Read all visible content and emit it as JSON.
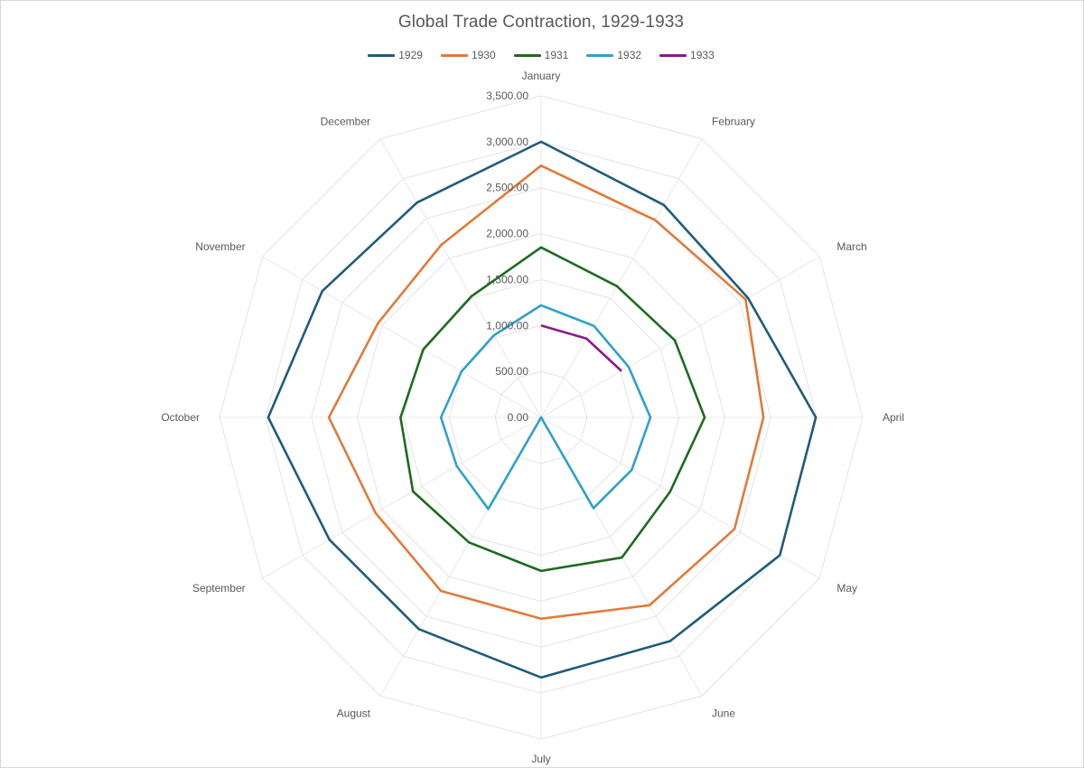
{
  "chart_data": {
    "type": "radar",
    "title": "Global Trade Contraction, 1929-1933",
    "categories": [
      "January",
      "February",
      "March",
      "April",
      "May",
      "June",
      "July",
      "August",
      "September",
      "October",
      "November",
      "December"
    ],
    "rlim": [
      0,
      3500
    ],
    "ticks": [
      0,
      500,
      1000,
      1500,
      2000,
      2500,
      3000,
      3500
    ],
    "tick_labels": [
      "0.00",
      "500.00",
      "1,000.00",
      "1,500.00",
      "2,000.00",
      "2,500.00",
      "3,000.00",
      "3,500.00"
    ],
    "grid": true,
    "legend_position": "top",
    "series": [
      {
        "name": "1929",
        "color": "#1f5c7a",
        "values": [
          3000,
          2670,
          2600,
          2990,
          3000,
          2810,
          2830,
          2660,
          2660,
          2970,
          2750,
          2700
        ]
      },
      {
        "name": "1930",
        "color": "#e07b39",
        "values": [
          2740,
          2480,
          2570,
          2420,
          2430,
          2360,
          2190,
          2180,
          2080,
          2310,
          2050,
          2170
        ]
      },
      {
        "name": "1931",
        "color": "#1e6b1e",
        "values": [
          1850,
          1650,
          1680,
          1780,
          1620,
          1760,
          1670,
          1570,
          1610,
          1530,
          1480,
          1520
        ]
      },
      {
        "name": "1932",
        "color": "#2ea1cc",
        "values": [
          1220,
          1150,
          1100,
          1190,
          1140,
          1140,
          0,
          1150,
          1060,
          1090,
          1000,
          1030
        ]
      },
      {
        "name": "1933",
        "color": "#8a1a8a",
        "values": [
          1000,
          990,
          1010,
          null,
          null,
          null,
          null,
          null,
          null,
          null,
          null,
          null
        ]
      }
    ]
  }
}
